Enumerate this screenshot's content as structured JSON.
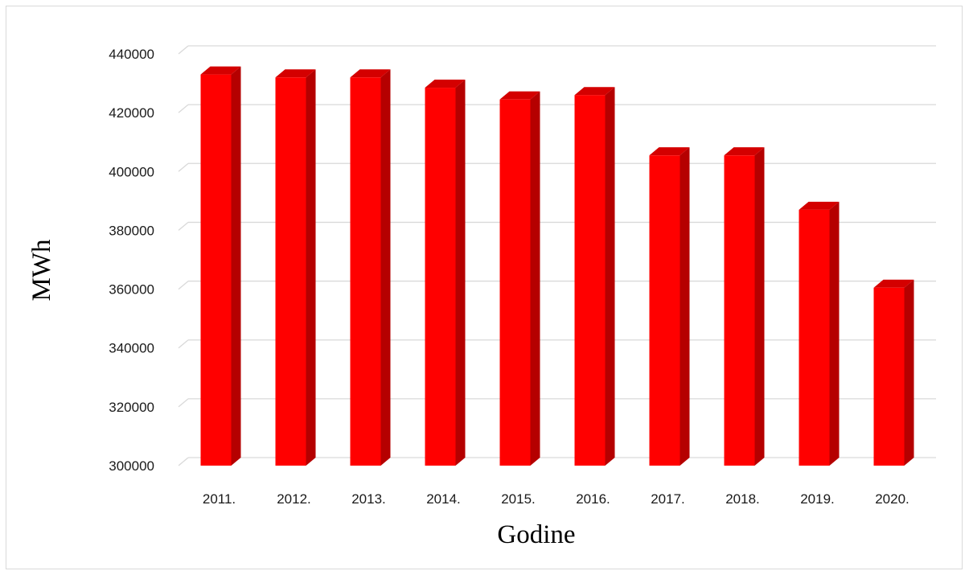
{
  "chart_data": {
    "type": "bar",
    "categories": [
      "2011.",
      "2012.",
      "2013.",
      "2014.",
      "2015.",
      "2016.",
      "2017.",
      "2018.",
      "2019.",
      "2020."
    ],
    "values": [
      433000,
      432000,
      432000,
      428500,
      424500,
      426000,
      405500,
      405500,
      387000,
      360500
    ],
    "xlabel": "Godine",
    "ylabel": "MWh",
    "ylim": [
      300000,
      440000
    ],
    "yticks": [
      300000,
      320000,
      340000,
      360000,
      380000,
      400000,
      420000,
      440000
    ],
    "grid": true,
    "legend": "none",
    "style": "3d-column",
    "colors": {
      "front": "#ff0000",
      "side": "#b50000",
      "top": "#d40000",
      "grid": "#d9d9d9"
    }
  }
}
